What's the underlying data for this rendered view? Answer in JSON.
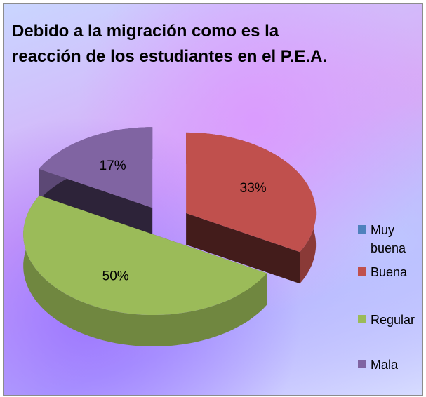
{
  "chart_data": {
    "type": "pie3d",
    "title": "Debido a la migración como es la reacción de los estudiantes en el P.E.A.",
    "categories": [
      "Muy buena",
      "Buena",
      "Regular",
      "Mala"
    ],
    "values": [
      0,
      33,
      50,
      17
    ],
    "value_labels": [
      null,
      "33%",
      "50%",
      "17%"
    ],
    "colors": [
      "#4f81bd",
      "#c0504d",
      "#9bbb59",
      "#8064a2"
    ],
    "legend": "right"
  }
}
